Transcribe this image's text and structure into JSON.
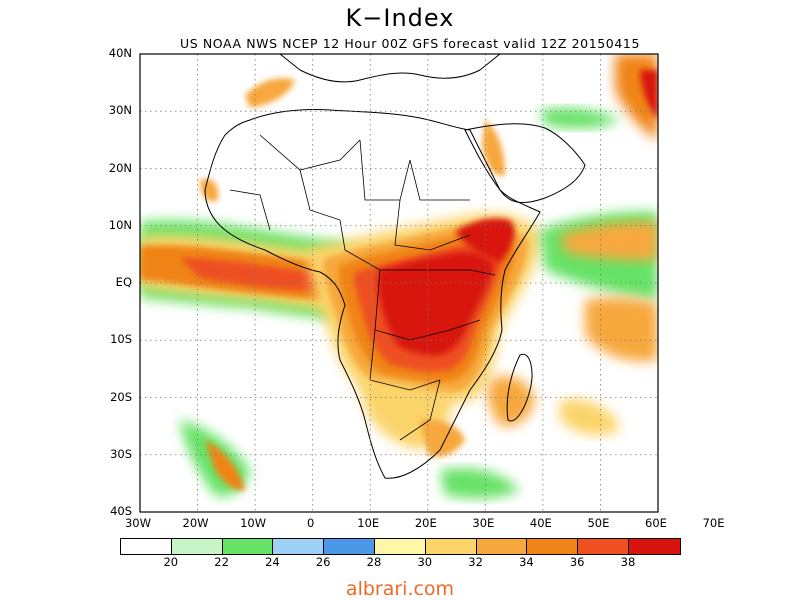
{
  "title": "K−Index",
  "subtitle": "US NOAA NWS NCEP 12 Hour 00Z GFS forecast valid 12Z 20150415",
  "lat_labels": [
    "40N",
    "30N",
    "20N",
    "10N",
    "EQ",
    "10S",
    "20S",
    "30S",
    "40S"
  ],
  "lon_labels": [
    "30W",
    "20W",
    "10W",
    "0",
    "10E",
    "20E",
    "30E",
    "40E",
    "50E",
    "60E",
    "70E"
  ],
  "legend": {
    "colors": [
      "#ffffff",
      "#c8f5c8",
      "#66e266",
      "#9fd0f5",
      "#4c98e8",
      "#fff6a8",
      "#fbd46a",
      "#f7a83c",
      "#f08418",
      "#ee5020",
      "#d8140e"
    ],
    "labels": [
      "20",
      "22",
      "24",
      "26",
      "28",
      "30",
      "32",
      "34",
      "36",
      "38"
    ]
  },
  "footer": "albrari.com"
}
